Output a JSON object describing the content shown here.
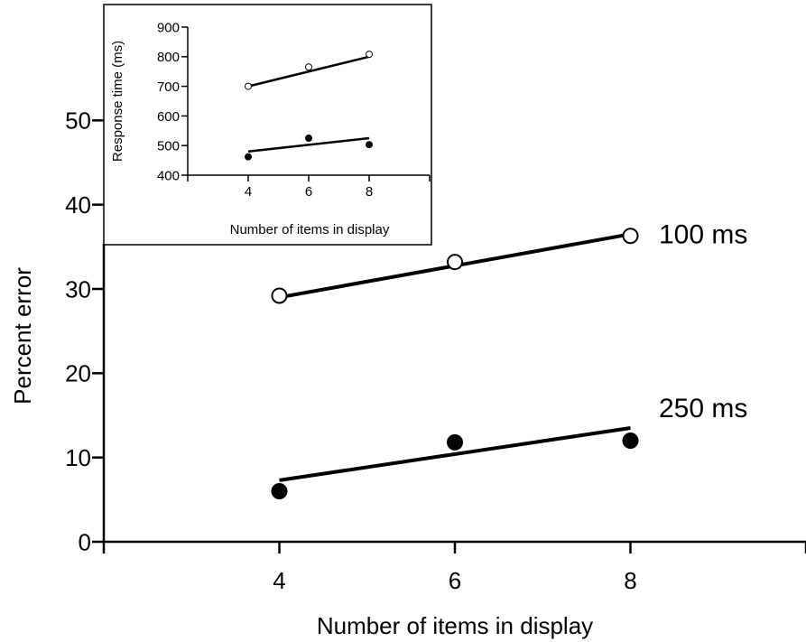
{
  "chart_data": [
    {
      "type": "line",
      "role": "main",
      "xlabel": "Number of items in display",
      "ylabel": "Percent error",
      "x_ticks": [
        4,
        6,
        8
      ],
      "y_ticks": [
        0,
        10,
        20,
        30,
        40,
        50
      ],
      "xlim": [
        2,
        10
      ],
      "ylim": [
        0,
        60
      ],
      "grid": false,
      "series": [
        {
          "name": "100 ms",
          "marker": "open-circle",
          "x": [
            4,
            6,
            8
          ],
          "y": [
            29.2,
            33.2,
            36.3
          ],
          "fit": [
            29.0,
            36.5
          ]
        },
        {
          "name": "250 ms",
          "marker": "filled-circle",
          "x": [
            4,
            6,
            8
          ],
          "y": [
            6.0,
            11.8,
            12.0
          ],
          "fit": [
            7.3,
            13.5
          ]
        }
      ]
    },
    {
      "type": "line",
      "role": "inset",
      "xlabel": "Number of items in display",
      "ylabel": "Response time (ms)",
      "x_ticks": [
        4,
        6,
        8
      ],
      "y_ticks": [
        400,
        500,
        600,
        700,
        800,
        900
      ],
      "xlim": [
        2,
        10
      ],
      "ylim": [
        400,
        900
      ],
      "grid": false,
      "series": [
        {
          "name": "100 ms",
          "marker": "open-circle",
          "x": [
            4,
            6,
            8
          ],
          "y": [
            700,
            765,
            808
          ],
          "fit": [
            700,
            800
          ]
        },
        {
          "name": "250 ms",
          "marker": "filled-circle",
          "x": [
            4,
            6,
            8
          ],
          "y": [
            462,
            525,
            503
          ],
          "fit": [
            480,
            525
          ]
        }
      ]
    }
  ]
}
